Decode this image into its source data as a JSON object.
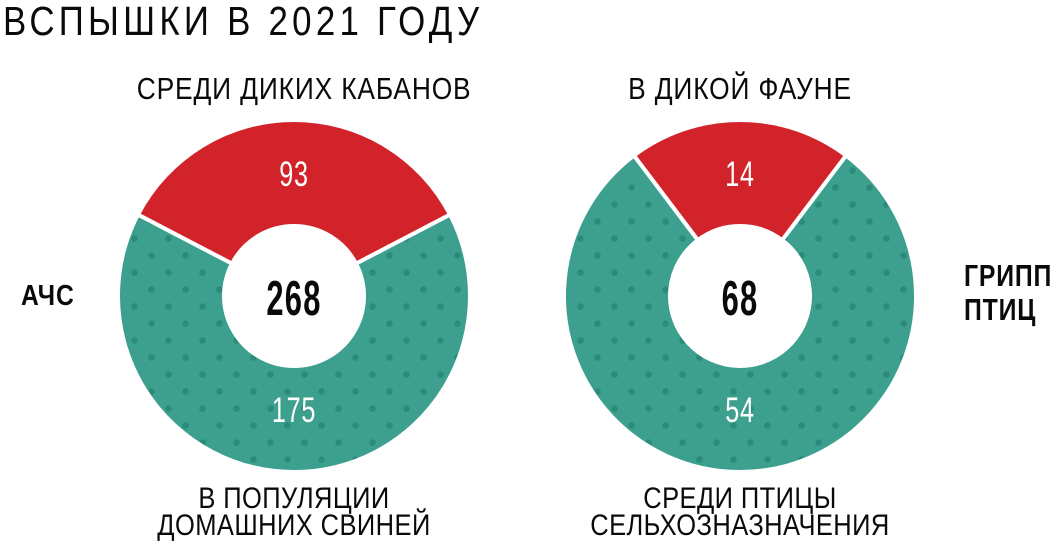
{
  "title": "ВСПЫШКИ В 2021 ГОДУ",
  "colors": {
    "red": "#d2232a",
    "teal": "#3da08f",
    "teal_dot": "#2b8b7b",
    "text": "#0a0a0a",
    "value_text": "#ffffff"
  },
  "chart_data": [
    {
      "type": "pie",
      "subtype": "donut",
      "series_label": "АЧС",
      "header": "СРЕДИ ДИКИХ КАБАНОВ",
      "total": 268,
      "segments": [
        {
          "name": "СРЕДИ ДИКИХ КАБАНОВ",
          "value": 93,
          "color_key": "red"
        },
        {
          "name": "В ПОПУЛЯЦИИ ДОМАШНИХ СВИНЕЙ",
          "value": 175,
          "color_key": "teal"
        }
      ],
      "caption_lines": [
        "В ПОПУЛЯЦИИ",
        "ДОМАШНИХ СВИНЕЙ"
      ]
    },
    {
      "type": "pie",
      "subtype": "donut",
      "series_label": "ГРИПП ПТИЦ",
      "series_label_lines": [
        "ГРИПП",
        "ПТИЦ"
      ],
      "header": "В ДИКОЙ ФАУНЕ",
      "total": 68,
      "segments": [
        {
          "name": "В ДИКОЙ ФАУНЕ",
          "value": 14,
          "color_key": "red"
        },
        {
          "name": "СРЕДИ ПТИЦЫ СЕЛЬХОЗНАЗНАЧЕНИЯ",
          "value": 54,
          "color_key": "teal"
        }
      ],
      "caption_lines": [
        "СРЕДИ ПТИЦЫ",
        "СЕЛЬХОЗНАЗНАЧЕНИЯ"
      ]
    }
  ]
}
